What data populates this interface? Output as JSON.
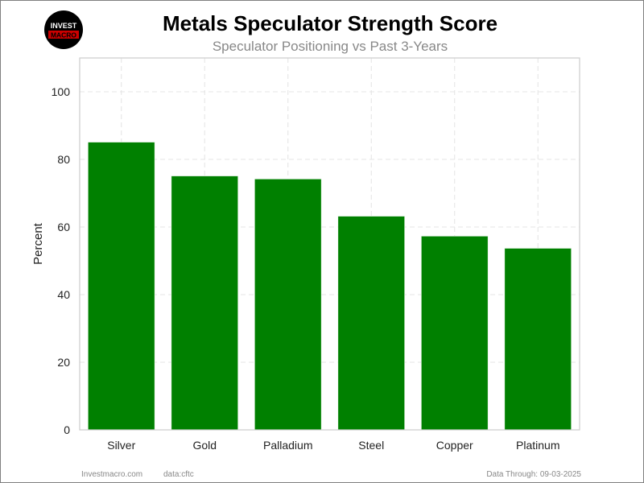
{
  "logo": {
    "line1": "INVEST",
    "line2": "MACRO"
  },
  "footer": {
    "site": "Investmacro.com",
    "source": "data:cftc",
    "data_through": "Data Through: 09-03-2025"
  },
  "chart_data": {
    "type": "bar",
    "title": "Metals Speculator Strength Score",
    "subtitle": "Speculator Positioning vs Past 3-Years",
    "xlabel": "",
    "ylabel": "Percent",
    "categories": [
      "Silver",
      "Gold",
      "Palladium",
      "Steel",
      "Copper",
      "Platinum"
    ],
    "values": [
      85.1,
      75.1,
      74.2,
      63.2,
      57.3,
      53.7
    ],
    "ylim": [
      0,
      110
    ],
    "yticks": [
      0,
      20,
      40,
      60,
      80,
      100
    ],
    "grid": true,
    "bar_color": "#008000"
  }
}
